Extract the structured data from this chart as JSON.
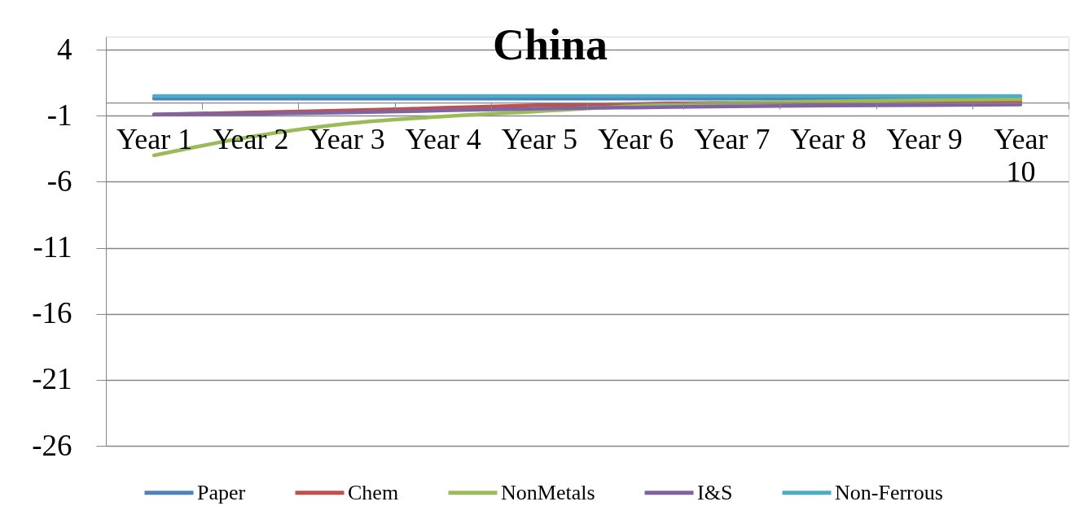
{
  "chart_data": {
    "type": "line",
    "title": "China",
    "categories": [
      "Year 1",
      "Year 2",
      "Year 3",
      "Year 4",
      "Year 5",
      "Year 6",
      "Year 7",
      "Year 8",
      "Year 9",
      "Year 10"
    ],
    "series": [
      {
        "name": "Paper",
        "color": "#4f81bd",
        "values": [
          0.3,
          0.3,
          0.3,
          0.3,
          0.3,
          0.3,
          0.3,
          0.3,
          0.3,
          0.3
        ]
      },
      {
        "name": "Chem",
        "color": "#c0504d",
        "values": [
          -0.9,
          -0.75,
          -0.6,
          -0.4,
          -0.2,
          -0.1,
          0,
          0,
          0,
          0.05
        ]
      },
      {
        "name": "NonMetals",
        "color": "#9bbb59",
        "values": [
          -4,
          -2.6,
          -1.6,
          -1.05,
          -0.65,
          -0.25,
          0,
          0.1,
          0.2,
          0.25
        ]
      },
      {
        "name": "I&S",
        "color": "#8064a2",
        "values": [
          -0.9,
          -0.85,
          -0.75,
          -0.6,
          -0.45,
          -0.37,
          -0.28,
          -0.22,
          -0.2,
          -0.15
        ]
      },
      {
        "name": "Non-Ferrous",
        "color": "#4bacc6",
        "values": [
          0.5,
          0.5,
          0.5,
          0.5,
          0.5,
          0.5,
          0.5,
          0.5,
          0.5,
          0.5
        ]
      }
    ],
    "ylim": [
      -26,
      5
    ],
    "yticks": [
      -26,
      -21,
      -16,
      -11,
      -6,
      -1,
      4
    ],
    "grid": "y",
    "legend": "bottom"
  }
}
